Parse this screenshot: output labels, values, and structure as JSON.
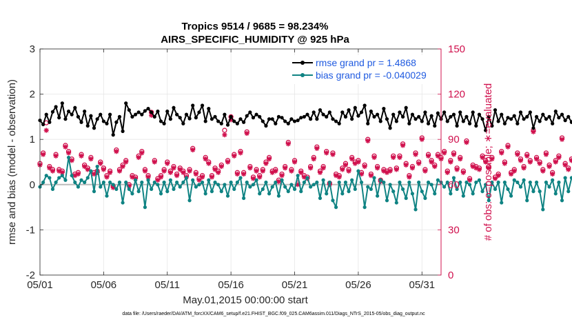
{
  "chart_data": {
    "type": "line",
    "title": [
      "Tropics 9514 / 9685 = 98.234%",
      "AIRS_SPECIFIC_HUMIDITY @ 925 hPa"
    ],
    "xlabel": "May.01,2015 00:00:00 start",
    "ylabel": "rmse and bias (model - observation)",
    "y2label": "# of obs: o=possible; ∗=evaluated",
    "footer": "data file: /Users/raeder/DAI/ATM_forcXX/CAM6_setup/f.e21.FHIST_BGC.f09_025.CAM6assim.011/Diags_NTrS_2015-05/obs_diag_output.nc",
    "xlim": [
      0,
      31.5
    ],
    "ylim": [
      -2,
      3
    ],
    "y2lim": [
      0,
      150
    ],
    "x_ticks": [
      0,
      5,
      10,
      15,
      20,
      25,
      30
    ],
    "x_tick_labels": [
      "05/01",
      "05/06",
      "05/11",
      "05/16",
      "05/21",
      "05/26",
      "05/31"
    ],
    "y_ticks": [
      -2,
      -1,
      0,
      1,
      2,
      3
    ],
    "y2_ticks": [
      0,
      30,
      60,
      90,
      120,
      150
    ],
    "legend_location": "top-right",
    "colors": {
      "rmse": "#000000",
      "bias": "#0f8383",
      "obs": "#d0104d",
      "axis2": "#d0104d",
      "legend_text": "#1f5ae0",
      "zero_line": "#bbbbbb"
    },
    "interval_days": 0.25,
    "series": [
      {
        "name": "rmse grand pr = 1.4868",
        "axis": "left",
        "values": [
          1.42,
          1.33,
          1.55,
          1.38,
          1.61,
          1.72,
          1.48,
          1.8,
          1.45,
          1.62,
          1.55,
          1.7,
          1.5,
          1.38,
          1.62,
          1.3,
          1.52,
          1.25,
          1.45,
          1.55,
          1.4,
          1.35,
          1.55,
          1.1,
          1.38,
          1.5,
          1.18,
          1.8,
          1.65,
          1.5,
          1.55,
          1.6,
          1.55,
          1.63,
          1.68,
          1.6,
          1.5,
          1.62,
          1.4,
          1.35,
          1.62,
          1.45,
          1.7,
          1.55,
          1.48,
          1.35,
          1.55,
          1.46,
          1.75,
          1.48,
          1.6,
          1.75,
          1.4,
          1.68,
          1.45,
          1.5,
          1.4,
          1.35,
          1.55,
          1.32,
          1.5,
          1.4,
          1.35,
          1.45,
          1.38,
          1.52,
          1.6,
          1.48,
          1.55,
          1.5,
          1.4,
          1.3,
          1.45,
          1.45,
          1.35,
          1.5,
          1.48,
          1.4,
          1.35,
          1.45,
          1.4,
          1.42,
          1.48,
          1.5,
          1.55,
          1.45,
          1.6,
          1.45,
          1.65,
          1.55,
          1.5,
          1.6,
          1.45,
          1.4,
          1.35,
          1.6,
          1.5,
          1.65,
          1.45,
          1.7,
          1.52,
          1.6,
          1.75,
          1.35,
          1.62,
          1.5,
          1.55,
          1.4,
          1.68,
          1.45,
          1.25,
          1.55,
          1.4,
          1.6,
          1.5,
          1.7,
          1.35,
          1.55,
          1.45,
          1.5,
          1.4,
          1.6,
          1.35,
          1.52,
          1.3,
          1.58,
          1.45,
          1.6,
          1.4,
          1.5,
          1.55,
          1.3,
          1.6,
          1.4,
          1.5,
          1.35,
          1.6,
          1.3,
          1.55,
          1.45,
          1.2,
          1.5,
          1.3,
          1.65,
          1.4,
          1.55,
          1.35,
          1.48,
          1.45,
          1.52,
          1.35,
          1.6,
          1.45,
          1.5,
          1.6,
          1.25,
          1.5,
          1.4,
          1.55,
          1.45,
          1.5,
          1.35,
          1.62,
          1.48,
          1.55,
          1.42,
          1.5,
          1.38,
          1.55,
          1.25,
          1.5,
          1.4,
          1.45,
          1.35,
          1.5,
          1.4,
          1.55,
          1.3,
          1.45,
          1.35,
          1.6,
          1.45,
          1.55,
          1.5,
          1.45,
          1.35,
          1.42,
          1.5,
          1.45,
          1.4,
          1.8,
          1.3,
          1.6,
          1.25,
          1.45,
          1.3,
          1.5,
          1.7,
          1.45,
          1.25,
          1.4,
          1.6,
          1.5,
          1.65,
          1.55,
          1.7,
          1.45,
          1.25,
          1.35,
          1.38,
          1.35
        ]
      },
      {
        "name": "bias grand pr = -0.040029",
        "axis": "left",
        "values": [
          -0.05,
          0.05,
          0.2,
          0.15,
          -0.1,
          0.05,
          0.15,
          0.2,
          0.1,
          0.6,
          0.2,
          0.05,
          -0.05,
          0.1,
          0.05,
          0.15,
          0.3,
          -0.15,
          0.4,
          -0.05,
          0.05,
          -0.25,
          0.05,
          0.0,
          -0.1,
          0.05,
          -0.4,
          0.05,
          -0.1,
          -0.2,
          0.1,
          -0.15,
          0.05,
          -0.5,
          0.1,
          -0.1,
          0.05,
          0.0,
          -0.2,
          0.05,
          -0.15,
          0.1,
          -0.1,
          0.05,
          -0.05,
          0.05,
          0.15,
          -0.35,
          0.1,
          -0.05,
          0.0,
          0.05,
          -0.2,
          0.1,
          -0.15,
          0.05,
          0.0,
          -0.15,
          0.0,
          -0.25,
          0.05,
          -0.1,
          0.05,
          0.15,
          -0.3,
          0.05,
          -0.05,
          0.0,
          0.1,
          -0.2,
          -0.1,
          0.05,
          -0.2,
          -0.05,
          0.05,
          -0.25,
          0.1,
          -0.05,
          -0.15,
          0.0,
          -0.1,
          0.2,
          -0.15,
          0.05,
          0.15,
          -0.05,
          0.0,
          0.05,
          -0.3,
          0.1,
          -0.2,
          0.05,
          -0.35,
          -0.5,
          0.05,
          -0.2,
          0.05,
          -0.15,
          0.1,
          -0.1,
          0.3,
          0.05,
          -0.5,
          -0.05,
          -0.1,
          0.15,
          -0.25,
          0.1,
          0.05,
          -0.35,
          0.0,
          -0.15,
          -0.4,
          0.05,
          -0.1,
          -0.3,
          0.05,
          -0.2,
          -0.55,
          0.05,
          -0.15,
          -0.3,
          0.05,
          0.0,
          -0.2,
          0.1,
          0.05,
          -0.05,
          0.05,
          -0.2,
          0.15,
          -0.1,
          0.05,
          -0.25,
          0.05,
          0.0,
          -0.2,
          0.05,
          0.1,
          -0.15,
          0.0,
          -0.35,
          0.05,
          -0.1,
          0.05,
          -0.4,
          0.05,
          -0.1,
          -0.25,
          0.1,
          0.05,
          -0.05,
          0.1,
          -0.35,
          0.05,
          -0.15,
          0.05,
          -0.15,
          -0.55,
          0.05,
          -0.05,
          0.1,
          -0.2,
          0.05,
          -0.35,
          0.15,
          -0.15,
          0.15,
          0.05,
          -0.05,
          0.0,
          0.25,
          -0.05,
          0.05,
          0.1,
          -0.15,
          0.15,
          0.0,
          -0.1,
          0.05,
          -0.2,
          0.05,
          0.05,
          -0.15,
          0.05,
          0.3,
          0.2,
          0.05,
          -0.15,
          0.15,
          -0.2,
          0.55,
          0.05,
          0.15,
          -0.35,
          0.0,
          0.05,
          -0.05,
          0.0,
          0.1,
          0.25,
          -0.2,
          0.05,
          -0.3,
          0.0,
          0.1,
          0.35,
          -0.05,
          -0.15,
          0.1,
          0.05,
          -0.1,
          -0.15,
          0.1
        ]
      },
      {
        "name": "possible",
        "axis": "right",
        "marker": "o",
        "values": [
          74,
          81,
          101,
          72,
          70,
          80,
          70,
          69,
          86,
          82,
          77,
          67,
          68,
          80,
          73,
          71,
          78,
          68,
          69,
          75,
          71,
          66,
          69,
          59,
          83,
          70,
          73,
          76,
          60,
          66,
          65,
          79,
          82,
          70,
          66,
          108,
          76,
          64,
          66,
          70,
          75,
          69,
          72,
          67,
          71,
          69,
          66,
          70,
          84,
          68,
          64,
          66,
          78,
          75,
          66,
          71,
          69,
          73,
          96,
          76,
          105,
          80,
          68,
          82,
          68,
          95,
          72,
          65,
          70,
          66,
          70,
          75,
          78,
          69,
          70,
          63,
          67,
          72,
          88,
          70,
          76,
          61,
          69,
          66,
          65,
          72,
          78,
          85,
          69,
          72,
          82,
          61,
          81,
          67,
          66,
          71,
          74,
          70,
          78,
          75,
          76,
          68,
          73,
          90,
          67,
          79,
          72,
          63,
          70,
          69,
          70,
          79,
          71,
          79,
          87,
          74,
          66,
          72,
          81,
          75,
          91,
          70,
          80,
          76,
          73,
          80,
          78,
          82,
          69,
          76,
          81,
          71,
          78,
          69,
          89,
          64,
          73,
          72,
          71,
          79,
          76,
          72,
          78,
          65,
          67,
          82,
          75,
          86,
          68,
          70,
          81,
          77,
          72,
          80,
          76,
          96,
          78,
          75,
          70,
          81,
          73,
          68,
          76,
          79,
          91,
          74,
          71,
          77,
          66,
          73,
          78,
          99,
          70,
          80,
          75,
          73,
          92,
          70,
          77,
          84,
          79,
          78,
          71,
          86,
          72,
          74,
          80,
          109,
          70,
          69,
          74,
          82,
          73,
          77,
          94,
          84,
          71,
          80,
          79,
          88,
          79,
          92,
          80,
          73,
          84,
          77,
          0
        ]
      },
      {
        "name": "evaluated",
        "axis": "right",
        "marker": "*",
        "values": [
          73,
          80,
          96,
          71,
          69,
          79,
          69,
          68,
          85,
          81,
          76,
          66,
          67,
          79,
          72,
          70,
          77,
          67,
          68,
          74,
          70,
          65,
          68,
          58,
          82,
          69,
          72,
          75,
          59,
          65,
          64,
          78,
          81,
          69,
          65,
          106,
          75,
          63,
          65,
          69,
          74,
          68,
          71,
          66,
          70,
          68,
          65,
          69,
          83,
          67,
          63,
          65,
          77,
          74,
          65,
          70,
          68,
          72,
          93,
          75,
          103,
          79,
          67,
          81,
          67,
          94,
          71,
          64,
          69,
          65,
          69,
          74,
          77,
          68,
          69,
          62,
          66,
          71,
          87,
          69,
          75,
          60,
          68,
          65,
          64,
          71,
          77,
          84,
          68,
          71,
          81,
          60,
          80,
          66,
          65,
          70,
          73,
          69,
          77,
          74,
          75,
          67,
          72,
          89,
          66,
          78,
          71,
          62,
          69,
          68,
          69,
          78,
          70,
          78,
          86,
          73,
          65,
          71,
          80,
          74,
          90,
          69,
          79,
          75,
          72,
          79,
          77,
          81,
          68,
          75,
          80,
          70,
          77,
          68,
          88,
          63,
          72,
          71,
          70,
          78,
          75,
          71,
          77,
          64,
          66,
          81,
          74,
          85,
          67,
          69,
          80,
          76,
          71,
          79,
          75,
          95,
          77,
          74,
          69,
          80,
          72,
          67,
          75,
          78,
          90,
          73,
          70,
          76,
          65,
          72,
          77,
          98,
          69,
          79,
          74,
          72,
          91,
          69,
          76,
          83,
          78,
          77,
          70,
          85,
          71,
          73,
          79,
          107,
          69,
          68,
          73,
          81,
          72,
          76,
          93,
          83,
          70,
          79,
          78,
          87,
          78,
          91,
          79,
          72,
          83,
          76,
          0
        ]
      }
    ]
  }
}
